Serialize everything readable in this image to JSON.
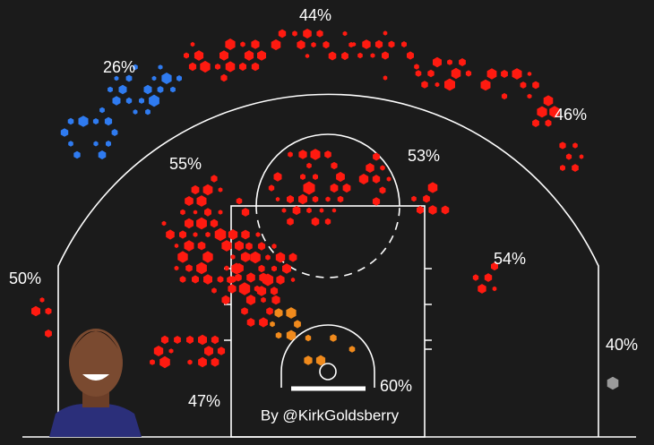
{
  "chart_data": {
    "type": "shot-chart",
    "values": [
      44,
      26,
      46,
      55,
      53,
      50,
      54,
      47,
      60,
      40
    ],
    "value_labels": [
      "44%",
      "26%",
      "46%",
      "55%",
      "53%",
      "50%",
      "54%",
      "47%",
      "60%",
      "40%"
    ],
    "colors": [
      "#ff1a10",
      "#2f7bf0",
      "#ff1a10",
      "#ff1a10",
      "#ff1a10",
      "#ff1a10",
      "#ff1a10",
      "#ff1a10",
      "#f08a1c",
      "#9a9a9a"
    ],
    "credit": "By @KirkGoldsberry"
  }
}
